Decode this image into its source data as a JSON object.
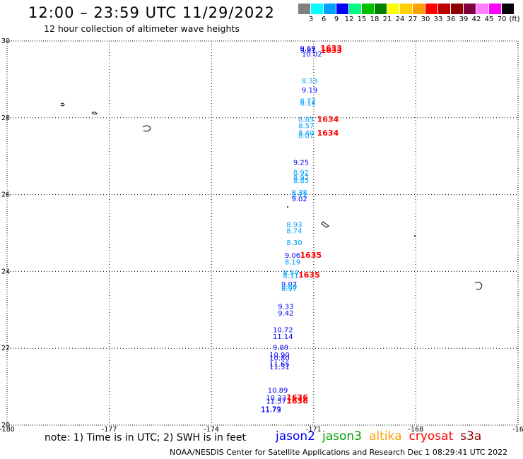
{
  "header": {
    "title": "12:00 – 23:59 UTC 11/29/2022",
    "subtitle": "12 hour collection of altimeter wave heights"
  },
  "color_scale": {
    "labels": [
      "3",
      "6",
      "9",
      "12",
      "15",
      "18",
      "21",
      "24",
      "27",
      "30",
      "33",
      "36",
      "39",
      "42",
      "45",
      "70",
      "(ft)"
    ],
    "colors": [
      "#808080",
      "#00ffff",
      "#00a0ff",
      "#0000ff",
      "#00ff80",
      "#00c000",
      "#008000",
      "#ffff00",
      "#ffd000",
      "#ffa000",
      "#ff0000",
      "#c00000",
      "#900000",
      "#800040",
      "#ff80ff",
      "#ff00ff",
      "#000000"
    ]
  },
  "map": {
    "lat_labels": [
      "30",
      "28",
      "26",
      "24",
      "22",
      "20"
    ],
    "lon_labels": [
      "-180",
      "-177",
      "-174",
      "-171",
      "-168",
      "-16"
    ],
    "swh_labels": [
      {
        "t": "9.69",
        "c": "#0000ff",
        "lon": -171.4,
        "lat": 29.82
      },
      {
        "t": "9.81",
        "c": "#0000ff",
        "lon": -171.4,
        "lat": 29.77
      },
      {
        "t": "10.02",
        "c": "#0000ff",
        "lon": -171.35,
        "lat": 29.67
      },
      {
        "t": "8.33",
        "c": "#00a0ff",
        "lon": -171.35,
        "lat": 28.97
      },
      {
        "t": "9.19",
        "c": "#0000ff",
        "lon": -171.35,
        "lat": 28.73
      },
      {
        "t": "8.77",
        "c": "#00a0ff",
        "lon": -171.4,
        "lat": 28.45
      },
      {
        "t": "8.16",
        "c": "#00a0ff",
        "lon": -171.4,
        "lat": 28.39
      },
      {
        "t": "8.65",
        "c": "#00a0ff",
        "lon": -171.45,
        "lat": 27.97
      },
      {
        "t": "8.57",
        "c": "#00a0ff",
        "lon": -171.45,
        "lat": 27.8
      },
      {
        "t": "8.40",
        "c": "#00a0ff",
        "lon": -171.45,
        "lat": 27.62
      },
      {
        "t": "8.07",
        "c": "#00a0ff",
        "lon": -171.45,
        "lat": 27.55
      },
      {
        "t": "9.25",
        "c": "#0000ff",
        "lon": -171.6,
        "lat": 26.85
      },
      {
        "t": "8.92",
        "c": "#00a0ff",
        "lon": -171.6,
        "lat": 26.58
      },
      {
        "t": "8.97",
        "c": "#00a0ff",
        "lon": -171.6,
        "lat": 26.45
      },
      {
        "t": "8.85",
        "c": "#00a0ff",
        "lon": -171.6,
        "lat": 26.38
      },
      {
        "t": "8.38",
        "c": "#00a0ff",
        "lon": -171.65,
        "lat": 26.07
      },
      {
        "t": "8.71",
        "c": "#00a0ff",
        "lon": -171.65,
        "lat": 26.0
      },
      {
        "t": "9.02",
        "c": "#0000ff",
        "lon": -171.65,
        "lat": 25.9
      },
      {
        "t": "8.93",
        "c": "#00a0ff",
        "lon": -171.8,
        "lat": 25.23
      },
      {
        "t": "8.74",
        "c": "#00a0ff",
        "lon": -171.8,
        "lat": 25.06
      },
      {
        "t": "8.30",
        "c": "#00a0ff",
        "lon": -171.8,
        "lat": 24.76
      },
      {
        "t": "9.06",
        "c": "#0000ff",
        "lon": -171.85,
        "lat": 24.43
      },
      {
        "t": "8.19",
        "c": "#00a0ff",
        "lon": -171.85,
        "lat": 24.26
      },
      {
        "t": "8.54",
        "c": "#00a0ff",
        "lon": -171.9,
        "lat": 23.98
      },
      {
        "t": "8.11",
        "c": "#00a0ff",
        "lon": -171.9,
        "lat": 23.9
      },
      {
        "t": "9.07",
        "c": "#0000ff",
        "lon": -171.95,
        "lat": 23.68
      },
      {
        "t": "8.80",
        "c": "#00a0ff",
        "lon": -171.95,
        "lat": 23.61
      },
      {
        "t": "8.97",
        "c": "#00a0ff",
        "lon": -171.95,
        "lat": 23.57
      },
      {
        "t": "9.33",
        "c": "#0000ff",
        "lon": -172.05,
        "lat": 23.1
      },
      {
        "t": "9.42",
        "c": "#0000ff",
        "lon": -172.05,
        "lat": 22.92
      },
      {
        "t": "10.72",
        "c": "#0000ff",
        "lon": -172.2,
        "lat": 22.49
      },
      {
        "t": "11.14",
        "c": "#0000ff",
        "lon": -172.2,
        "lat": 22.32
      },
      {
        "t": "9.89",
        "c": "#0000ff",
        "lon": -172.2,
        "lat": 22.03
      },
      {
        "t": "10.90",
        "c": "#0000ff",
        "lon": -172.3,
        "lat": 21.84
      },
      {
        "t": "10.80",
        "c": "#0000ff",
        "lon": -172.3,
        "lat": 21.76
      },
      {
        "t": "11.65",
        "c": "#0000ff",
        "lon": -172.3,
        "lat": 21.6
      },
      {
        "t": "11.51",
        "c": "#0000ff",
        "lon": -172.3,
        "lat": 21.53
      },
      {
        "t": "10.89",
        "c": "#0000ff",
        "lon": -172.35,
        "lat": 20.92
      },
      {
        "t": "10.33",
        "c": "#0000ff",
        "lon": -172.4,
        "lat": 20.72
      },
      {
        "t": "11.57",
        "c": "#0000ff",
        "lon": -172.4,
        "lat": 20.63
      },
      {
        "t": "11.79",
        "c": "#0000ff",
        "lon": -172.55,
        "lat": 20.43
      },
      {
        "t": "11.73",
        "c": "#0000ff",
        "lon": -172.55,
        "lat": 20.4
      }
    ],
    "time_labels": [
      {
        "t": "1633",
        "lon": -170.8,
        "lat": 29.82
      },
      {
        "t": "1633",
        "lon": -170.8,
        "lat": 29.76
      },
      {
        "t": "1634",
        "lon": -170.9,
        "lat": 27.97
      },
      {
        "t": "1634",
        "lon": -170.9,
        "lat": 27.61
      },
      {
        "t": "1635",
        "lon": -171.4,
        "lat": 24.43
      },
      {
        "t": "1635",
        "lon": -171.45,
        "lat": 23.92
      },
      {
        "t": "1636",
        "lon": -171.8,
        "lat": 20.73
      },
      {
        "t": "1636",
        "lon": -171.8,
        "lat": 20.63
      }
    ]
  },
  "note": "note: 1) Time is in UTC; 2) SWH is in feet",
  "satellites": [
    {
      "name": "jason2",
      "color": "#0000ff"
    },
    {
      "name": "jason3",
      "color": "#00a000"
    },
    {
      "name": "altika",
      "color": "#ffa000"
    },
    {
      "name": "cryosat",
      "color": "#ff0000"
    },
    {
      "name": "s3a",
      "color": "#900000"
    }
  ],
  "footer": "NOAA/NESDIS Center for Satellite Applications and Research    Dec  1 08:29:41 UTC 2022"
}
